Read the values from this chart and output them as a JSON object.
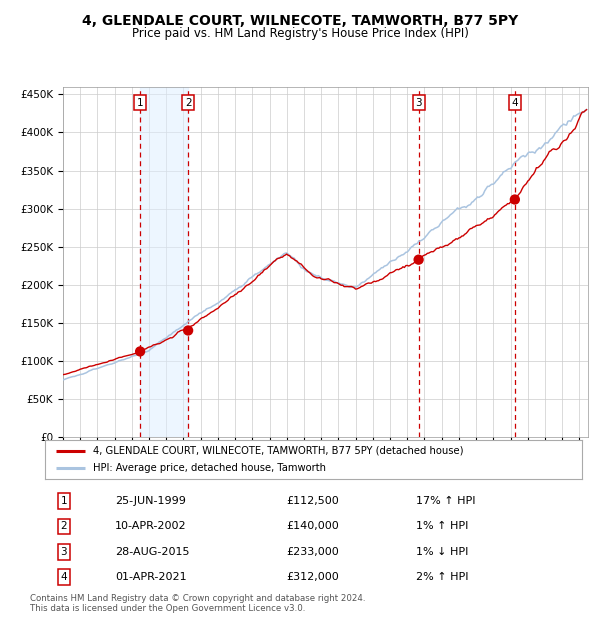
{
  "title": "4, GLENDALE COURT, WILNECOTE, TAMWORTH, B77 5PY",
  "subtitle": "Price paid vs. HM Land Registry's House Price Index (HPI)",
  "hpi_label": "HPI: Average price, detached house, Tamworth",
  "property_label": "4, GLENDALE COURT, WILNECOTE, TAMWORTH, B77 5PY (detached house)",
  "transactions": [
    {
      "num": 1,
      "date": "25-JUN-1999",
      "year": 1999.48,
      "price": 112500,
      "hpi_rel": "17% ↑ HPI"
    },
    {
      "num": 2,
      "date": "10-APR-2002",
      "year": 2002.27,
      "price": 140000,
      "hpi_rel": "1% ↑ HPI"
    },
    {
      "num": 3,
      "date": "28-AUG-2015",
      "year": 2015.66,
      "price": 233000,
      "hpi_rel": "1% ↓ HPI"
    },
    {
      "num": 4,
      "date": "01-APR-2021",
      "year": 2021.25,
      "price": 312000,
      "hpi_rel": "2% ↑ HPI"
    }
  ],
  "ylim": [
    0,
    460000
  ],
  "xlim_start": 1995.0,
  "xlim_end": 2025.5,
  "grid_color": "#cccccc",
  "bg_color": "#ffffff",
  "plot_bg_color": "#ffffff",
  "hpi_line_color": "#aac4e0",
  "property_line_color": "#cc0000",
  "shade_color": "#ddeeff",
  "dashed_line_color": "#cc0000",
  "dot_color": "#cc0000",
  "footer": "Contains HM Land Registry data © Crown copyright and database right 2024.\nThis data is licensed under the Open Government Licence v3.0.",
  "yticks": [
    0,
    50000,
    100000,
    150000,
    200000,
    250000,
    300000,
    350000,
    400000,
    450000
  ]
}
